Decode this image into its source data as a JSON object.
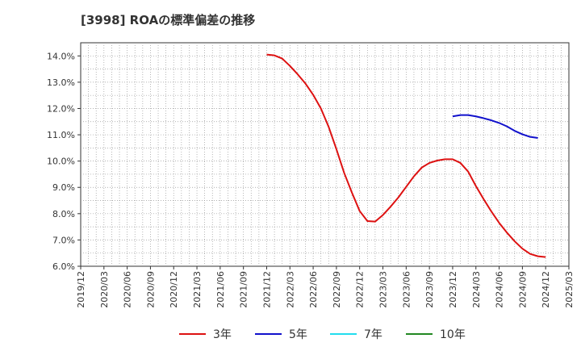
{
  "chart_data": {
    "type": "line",
    "title": "[3998]  ROAの標準偏差の推移",
    "xlabel": "",
    "ylabel": "",
    "ylim": [
      6.0,
      14.5
    ],
    "y_ticks": [
      6.0,
      7.0,
      8.0,
      9.0,
      10.0,
      11.0,
      12.0,
      13.0,
      14.0
    ],
    "y_tick_labels": [
      "6.0%",
      "7.0%",
      "8.0%",
      "9.0%",
      "10.0%",
      "11.0%",
      "12.0%",
      "13.0%",
      "14.0%"
    ],
    "x_ticks": [
      "2019/12",
      "2020/03",
      "2020/06",
      "2020/09",
      "2020/12",
      "2021/03",
      "2021/06",
      "2021/09",
      "2021/12",
      "2022/03",
      "2022/06",
      "2022/09",
      "2022/12",
      "2023/03",
      "2023/06",
      "2023/09",
      "2023/12",
      "2024/03",
      "2024/06",
      "2024/09",
      "2024/12",
      "2025/03"
    ],
    "grid": true,
    "legend_position": "bottom",
    "series": [
      {
        "name": "3年",
        "color": "#dd1111",
        "points": [
          [
            "2021/12",
            14.05
          ],
          [
            "2022/01",
            14.02
          ],
          [
            "2022/02",
            13.9
          ],
          [
            "2022/03",
            13.62
          ],
          [
            "2022/04",
            13.3
          ],
          [
            "2022/05",
            12.95
          ],
          [
            "2022/06",
            12.52
          ],
          [
            "2022/07",
            12.0
          ],
          [
            "2022/08",
            11.3
          ],
          [
            "2022/09",
            10.45
          ],
          [
            "2022/10",
            9.55
          ],
          [
            "2022/11",
            8.8
          ],
          [
            "2022/12",
            8.1
          ],
          [
            "2023/01",
            7.72
          ],
          [
            "2023/02",
            7.7
          ],
          [
            "2023/03",
            7.95
          ],
          [
            "2023/04",
            8.27
          ],
          [
            "2023/05",
            8.62
          ],
          [
            "2023/06",
            9.02
          ],
          [
            "2023/07",
            9.42
          ],
          [
            "2023/08",
            9.75
          ],
          [
            "2023/09",
            9.93
          ],
          [
            "2023/10",
            10.02
          ],
          [
            "2023/11",
            10.07
          ],
          [
            "2023/12",
            10.07
          ],
          [
            "2024/01",
            9.93
          ],
          [
            "2024/02",
            9.6
          ],
          [
            "2024/03",
            9.05
          ],
          [
            "2024/04",
            8.55
          ],
          [
            "2024/05",
            8.08
          ],
          [
            "2024/06",
            7.65
          ],
          [
            "2024/07",
            7.28
          ],
          [
            "2024/08",
            6.95
          ],
          [
            "2024/09",
            6.67
          ],
          [
            "2024/10",
            6.47
          ],
          [
            "2024/11",
            6.38
          ],
          [
            "2024/12",
            6.35
          ]
        ]
      },
      {
        "name": "5年",
        "color": "#1111cc",
        "points": [
          [
            "2023/12",
            11.7
          ],
          [
            "2024/01",
            11.75
          ],
          [
            "2024/02",
            11.75
          ],
          [
            "2024/03",
            11.7
          ],
          [
            "2024/04",
            11.63
          ],
          [
            "2024/05",
            11.55
          ],
          [
            "2024/06",
            11.45
          ],
          [
            "2024/07",
            11.32
          ],
          [
            "2024/08",
            11.15
          ],
          [
            "2024/09",
            11.02
          ],
          [
            "2024/10",
            10.92
          ],
          [
            "2024/11",
            10.88
          ]
        ]
      },
      {
        "name": "7年",
        "color": "#22ddee",
        "points": []
      },
      {
        "name": "10年",
        "color": "#228822",
        "points": []
      }
    ]
  }
}
